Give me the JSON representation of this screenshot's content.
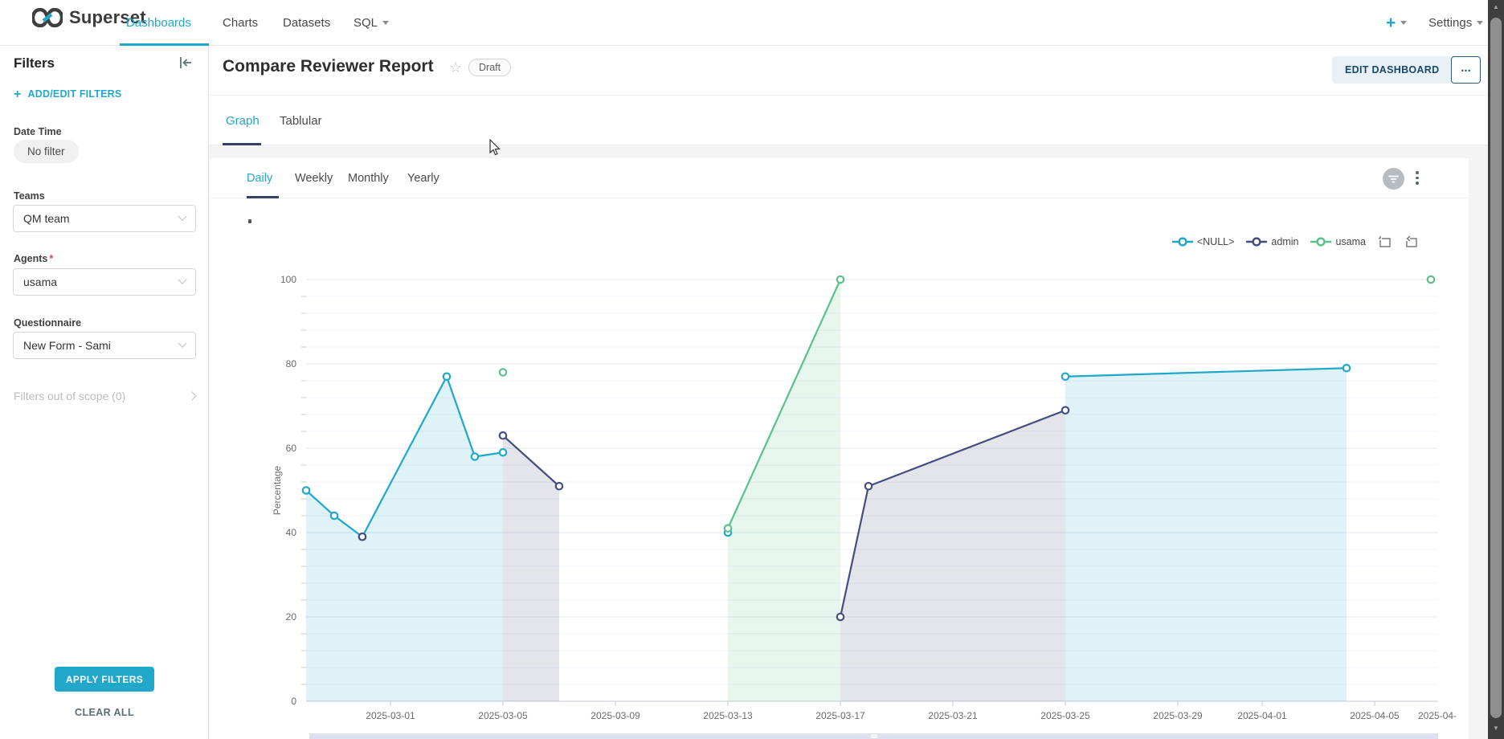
{
  "navbar": {
    "brand": "Superset",
    "items": [
      {
        "label": "Dashboards"
      },
      {
        "label": "Charts"
      },
      {
        "label": "Datasets"
      },
      {
        "label": "SQL"
      }
    ],
    "active_item": "Dashboards",
    "new_button": "+",
    "settings_label": "Settings"
  },
  "filters_panel": {
    "title": "Filters",
    "add_edit_label": "ADD/EDIT FILTERS",
    "add_edit_plus": "+",
    "date_time": {
      "label": "Date Time",
      "value": "No filter"
    },
    "teams": {
      "label": "Teams",
      "value": "QM team"
    },
    "agents": {
      "label": "Agents",
      "required_mark": "*",
      "value": "usama"
    },
    "questionnaire": {
      "label": "Questionnaire",
      "value": "New Form - Sami"
    },
    "out_of_scope": "Filters out of scope (0)",
    "apply_button": "APPLY FILTERS",
    "clear_button": "CLEAR ALL"
  },
  "dashboard": {
    "title": "Compare Reviewer Report",
    "status_badge": "Draft",
    "star_icon": "☆",
    "edit_button": "EDIT DASHBOARD",
    "more_button": "...",
    "tabs": [
      {
        "label": "Graph"
      },
      {
        "label": "Tablular"
      }
    ],
    "active_tab": "Graph"
  },
  "period_tabs": {
    "items": [
      {
        "label": "Daily"
      },
      {
        "label": "Weekly"
      },
      {
        "label": "Monthly"
      },
      {
        "label": "Yearly"
      }
    ],
    "active": "Daily"
  },
  "chart_data": {
    "type": "line",
    "title": ".",
    "ylabel": "Percentage",
    "ylim": [
      0,
      100
    ],
    "y_major_ticks": [
      0,
      20,
      40,
      60,
      80,
      100
    ],
    "y_minor_step": 4,
    "grid": true,
    "legend_position": "top-right",
    "x_axis": {
      "start": "2025-02-26",
      "tick_dates": [
        "2025-03-01",
        "2025-03-05",
        "2025-03-09",
        "2025-03-13",
        "2025-03-17",
        "2025-03-21",
        "2025-03-25",
        "2025-03-29",
        "2025-04-01",
        "2025-04-05"
      ],
      "clipped_last_label": "2025-04-"
    },
    "legend": [
      "<NULL>",
      "admin",
      "usama"
    ],
    "series": [
      {
        "name": "<NULL>",
        "color": "#1FA8C9",
        "area": true,
        "segments": [
          [
            {
              "date": "2025-02-26",
              "value": 50
            },
            {
              "date": "2025-02-27",
              "value": 44
            },
            {
              "date": "2025-02-28",
              "value": 39
            },
            {
              "date": "2025-03-03",
              "value": 77
            },
            {
              "date": "2025-03-04",
              "value": 58
            },
            {
              "date": "2025-03-05",
              "value": 59
            }
          ],
          [
            {
              "date": "2025-03-13",
              "value": 40
            }
          ],
          [
            {
              "date": "2025-03-25",
              "value": 77
            },
            {
              "date": "2025-04-04",
              "value": 79
            }
          ]
        ]
      },
      {
        "name": "admin",
        "color": "#454E7C",
        "area": true,
        "segments": [
          [
            {
              "date": "2025-02-28",
              "value": 39
            }
          ],
          [
            {
              "date": "2025-03-05",
              "value": 63
            },
            {
              "date": "2025-03-07",
              "value": 51
            }
          ],
          [
            {
              "date": "2025-03-17",
              "value": 20
            },
            {
              "date": "2025-03-18",
              "value": 51
            },
            {
              "date": "2025-03-25",
              "value": 69
            }
          ]
        ]
      },
      {
        "name": "usama",
        "color": "#5AC189",
        "area": true,
        "segments": [
          [
            {
              "date": "2025-03-05",
              "value": 78
            }
          ],
          [
            {
              "date": "2025-03-13",
              "value": 41
            },
            {
              "date": "2025-03-17",
              "value": 100
            }
          ],
          [
            {
              "date": "2025-04-07",
              "value": 100
            }
          ]
        ]
      }
    ]
  }
}
